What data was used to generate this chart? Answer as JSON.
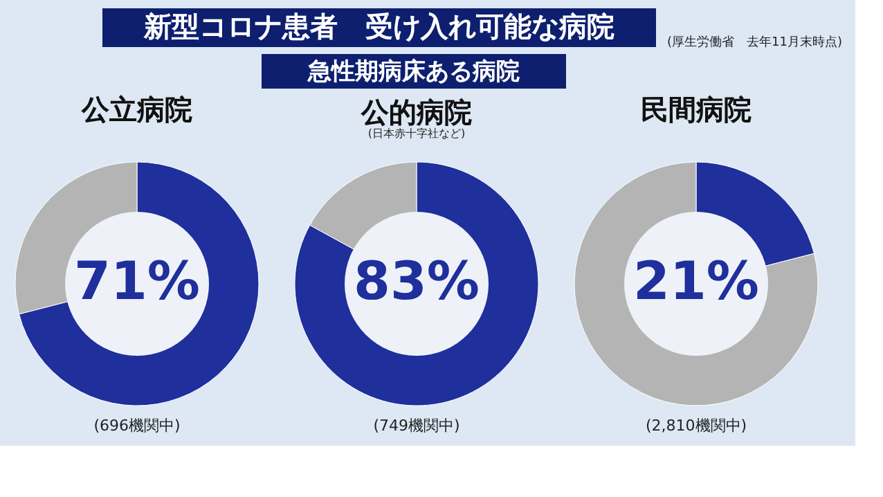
{
  "chart_data": [
    {
      "type": "other",
      "title": "新型コロナ患者　受け入れ可能な病院",
      "subtitle": "急性期病床ある病院",
      "annotations": [
        "(厚生労働省　去年11月末時点)"
      ]
    },
    {
      "type": "donut",
      "title": "公立病院",
      "categories": [
        null,
        null
      ],
      "values": [
        71,
        29
      ],
      "colors": [
        "#1f2f9c",
        "#b4b4b4"
      ],
      "value_labels": [
        "71%",
        null
      ],
      "annotations": [
        "(696機関中)"
      ]
    },
    {
      "type": "donut",
      "title": "公的病院",
      "subtitle": "(日本赤十字社など)",
      "categories": [
        null,
        null
      ],
      "values": [
        83,
        17
      ],
      "colors": [
        "#1f2f9c",
        "#b4b4b4"
      ],
      "value_labels": [
        "83%",
        null
      ],
      "annotations": [
        "(749機関中)"
      ]
    },
    {
      "type": "donut",
      "title": "民間病院",
      "categories": [
        null,
        null
      ],
      "values": [
        21,
        79
      ],
      "colors": [
        "#1f2f9c",
        "#b4b4b4"
      ],
      "value_labels": [
        "21%",
        null
      ],
      "annotations": [
        "(2,810機関中)"
      ]
    }
  ]
}
